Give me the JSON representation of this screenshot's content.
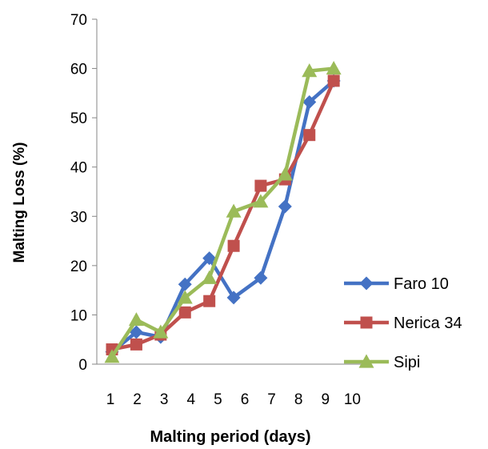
{
  "chart_data": {
    "type": "line",
    "xlabel": "Malting period (days)",
    "ylabel": "Malting Loss (%)",
    "ylim": [
      0,
      70
    ],
    "yticks": [
      0,
      10,
      20,
      30,
      40,
      50,
      60,
      70
    ],
    "categories": [
      "1",
      "2",
      "3",
      "4",
      "5",
      "6",
      "7",
      "8",
      "9",
      "10"
    ],
    "grid": false,
    "legend": "bottom-right",
    "series": [
      {
        "name": "Faro 10",
        "color": "#4472C4",
        "marker": "diamond",
        "x": [
          1,
          1.9,
          2.8,
          3.7,
          4.6,
          5.5,
          6.5,
          7.4,
          8.3,
          9.2
        ],
        "values": [
          2.5,
          6.5,
          5.5,
          16.2,
          21.5,
          13.5,
          17.5,
          32,
          53.2,
          57.5
        ]
      },
      {
        "name": "Nerica 34",
        "color": "#C0504D",
        "marker": "square",
        "x": [
          1,
          1.9,
          2.8,
          3.7,
          4.6,
          5.5,
          6.5,
          7.4,
          8.3,
          9.2
        ],
        "values": [
          3,
          4,
          6,
          10.5,
          12.8,
          24,
          36.2,
          37.5,
          46.5,
          57.5
        ]
      },
      {
        "name": "Sipi",
        "color": "#9BBB59",
        "marker": "triangle",
        "x": [
          1,
          1.9,
          2.8,
          3.7,
          4.6,
          5.5,
          6.5,
          7.4,
          8.3,
          9.2
        ],
        "values": [
          1.5,
          9,
          6.5,
          13.5,
          17.5,
          31,
          33,
          38.5,
          59.5,
          60
        ]
      }
    ]
  }
}
